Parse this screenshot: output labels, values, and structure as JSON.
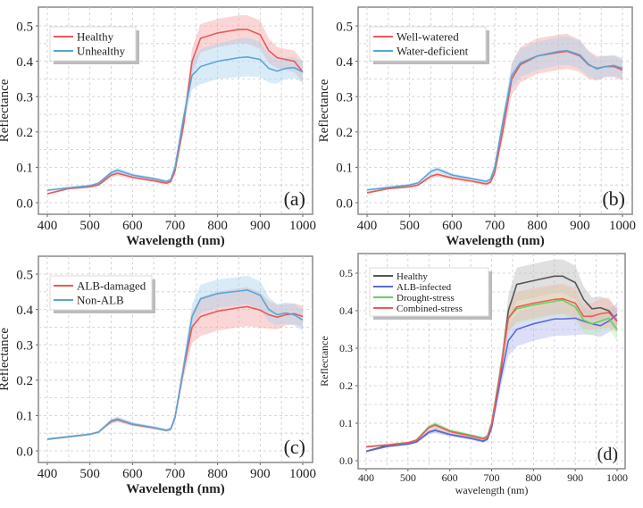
{
  "chart_data": [
    {
      "type": "line",
      "panel_label": "(a)",
      "xlabel": "Wavelength (nm)",
      "ylabel": "Reflectance",
      "xlim": [
        380,
        1020
      ],
      "ylim": [
        -0.015,
        0.55
      ],
      "xticks": [
        400,
        500,
        600,
        700,
        800,
        900,
        1000
      ],
      "yticks": [
        0.0,
        0.1,
        0.2,
        0.3,
        0.4,
        0.5
      ],
      "ytick_labels": [
        "0.0",
        "0.1",
        "0.2",
        "0.3",
        "0.4",
        "0.5"
      ],
      "grid": true,
      "legend_position": "top-left",
      "x": [
        400,
        450,
        500,
        520,
        550,
        565,
        600,
        650,
        680,
        690,
        700,
        720,
        740,
        760,
        800,
        850,
        870,
        900,
        920,
        940,
        960,
        980,
        1000
      ],
      "series": [
        {
          "name": "Healthy",
          "color": "#e8595a",
          "band_color": "#f4a5a5",
          "values": [
            0.025,
            0.04,
            0.045,
            0.05,
            0.078,
            0.083,
            0.072,
            0.062,
            0.055,
            0.06,
            0.09,
            0.22,
            0.4,
            0.465,
            0.48,
            0.49,
            0.49,
            0.475,
            0.43,
            0.41,
            0.405,
            0.4,
            0.37
          ],
          "std": [
            0.003,
            0.003,
            0.003,
            0.003,
            0.006,
            0.007,
            0.005,
            0.004,
            0.004,
            0.005,
            0.01,
            0.02,
            0.035,
            0.04,
            0.04,
            0.04,
            0.04,
            0.04,
            0.035,
            0.03,
            0.03,
            0.03,
            0.03
          ]
        },
        {
          "name": "Unhealthy",
          "color": "#5aa5d6",
          "band_color": "#a9d2ee",
          "values": [
            0.035,
            0.042,
            0.048,
            0.055,
            0.085,
            0.092,
            0.078,
            0.068,
            0.06,
            0.065,
            0.1,
            0.24,
            0.36,
            0.385,
            0.4,
            0.41,
            0.412,
            0.405,
            0.38,
            0.372,
            0.38,
            0.382,
            0.37
          ],
          "std": [
            0.003,
            0.003,
            0.003,
            0.003,
            0.006,
            0.007,
            0.005,
            0.004,
            0.004,
            0.005,
            0.01,
            0.02,
            0.04,
            0.05,
            0.05,
            0.055,
            0.055,
            0.05,
            0.04,
            0.035,
            0.03,
            0.03,
            0.03
          ]
        }
      ]
    },
    {
      "type": "line",
      "panel_label": "(b)",
      "xlabel": "Wavelength (nm)",
      "ylabel": "Reflectance",
      "xlim": [
        380,
        1020
      ],
      "ylim": [
        -0.015,
        0.55
      ],
      "xticks": [
        400,
        500,
        600,
        700,
        800,
        900,
        1000
      ],
      "yticks": [
        0.0,
        0.1,
        0.2,
        0.3,
        0.4,
        0.5
      ],
      "ytick_labels": [
        "0.0",
        "0.1",
        "0.2",
        "0.3",
        "0.4",
        "0.5"
      ],
      "grid": true,
      "legend_position": "top-left",
      "x": [
        400,
        450,
        500,
        520,
        550,
        565,
        600,
        650,
        680,
        690,
        700,
        720,
        740,
        760,
        800,
        850,
        870,
        900,
        920,
        940,
        960,
        980,
        1000
      ],
      "series": [
        {
          "name": "Well-watered",
          "color": "#e8595a",
          "band_color": "#f4a5a5",
          "values": [
            0.028,
            0.04,
            0.045,
            0.05,
            0.075,
            0.08,
            0.07,
            0.06,
            0.053,
            0.058,
            0.085,
            0.21,
            0.35,
            0.39,
            0.415,
            0.425,
            0.428,
            0.415,
            0.39,
            0.38,
            0.385,
            0.385,
            0.375
          ],
          "std": [
            0.003,
            0.003,
            0.003,
            0.003,
            0.006,
            0.007,
            0.005,
            0.004,
            0.004,
            0.005,
            0.01,
            0.025,
            0.045,
            0.05,
            0.05,
            0.05,
            0.05,
            0.045,
            0.04,
            0.035,
            0.03,
            0.03,
            0.03
          ]
        },
        {
          "name": "Water-deficient",
          "color": "#5aa5d6",
          "band_color": "#a9d2ee",
          "values": [
            0.036,
            0.043,
            0.05,
            0.056,
            0.088,
            0.095,
            0.078,
            0.067,
            0.06,
            0.066,
            0.1,
            0.235,
            0.36,
            0.395,
            0.415,
            0.428,
            0.43,
            0.418,
            0.392,
            0.378,
            0.385,
            0.388,
            0.38
          ],
          "std": [
            0.003,
            0.003,
            0.003,
            0.003,
            0.006,
            0.007,
            0.005,
            0.004,
            0.004,
            0.005,
            0.01,
            0.02,
            0.035,
            0.04,
            0.04,
            0.04,
            0.04,
            0.04,
            0.035,
            0.03,
            0.03,
            0.03,
            0.03
          ]
        }
      ]
    },
    {
      "type": "line",
      "panel_label": "(c)",
      "xlabel": "Wavelength (nm)",
      "ylabel": "Reflectance",
      "xlim": [
        380,
        1020
      ],
      "ylim": [
        -0.015,
        0.55
      ],
      "xticks": [
        400,
        500,
        600,
        700,
        800,
        900,
        1000
      ],
      "yticks": [
        0.0,
        0.1,
        0.2,
        0.3,
        0.4,
        0.5
      ],
      "ytick_labels": [
        "0.0",
        "0.1",
        "0.2",
        "0.3",
        "0.4",
        "0.5"
      ],
      "grid": true,
      "legend_position": "top-left",
      "x": [
        400,
        450,
        500,
        520,
        550,
        565,
        600,
        650,
        680,
        690,
        700,
        720,
        740,
        760,
        800,
        850,
        870,
        900,
        920,
        940,
        960,
        980,
        1000
      ],
      "series": [
        {
          "name": "ALB-damaged",
          "color": "#e8595a",
          "band_color": "#f4a5a5",
          "values": [
            0.033,
            0.04,
            0.047,
            0.053,
            0.083,
            0.088,
            0.075,
            0.065,
            0.058,
            0.062,
            0.095,
            0.23,
            0.35,
            0.38,
            0.395,
            0.405,
            0.408,
            0.398,
            0.385,
            0.378,
            0.385,
            0.388,
            0.38
          ],
          "std": [
            0.003,
            0.003,
            0.003,
            0.003,
            0.006,
            0.007,
            0.005,
            0.004,
            0.004,
            0.005,
            0.01,
            0.025,
            0.045,
            0.055,
            0.055,
            0.055,
            0.055,
            0.05,
            0.04,
            0.035,
            0.03,
            0.03,
            0.03
          ]
        },
        {
          "name": "Non-ALB",
          "color": "#5aa5d6",
          "band_color": "#a9d2ee",
          "values": [
            0.033,
            0.04,
            0.047,
            0.053,
            0.085,
            0.09,
            0.076,
            0.066,
            0.058,
            0.062,
            0.095,
            0.235,
            0.38,
            0.43,
            0.445,
            0.452,
            0.455,
            0.44,
            0.4,
            0.385,
            0.39,
            0.385,
            0.37
          ],
          "std": [
            0.003,
            0.003,
            0.003,
            0.003,
            0.006,
            0.007,
            0.005,
            0.004,
            0.004,
            0.005,
            0.01,
            0.02,
            0.035,
            0.04,
            0.04,
            0.04,
            0.04,
            0.04,
            0.035,
            0.03,
            0.03,
            0.03,
            0.03
          ]
        }
      ]
    },
    {
      "type": "line",
      "panel_label": "(d)",
      "xlabel": "wavelength (nm)",
      "ylabel": "Reflectance",
      "xlim": [
        380,
        1020
      ],
      "ylim": [
        -0.02,
        0.55
      ],
      "xticks": [
        400,
        500,
        600,
        700,
        800,
        900,
        1000
      ],
      "yticks": [
        0.0,
        0.1,
        0.2,
        0.3,
        0.4,
        0.5
      ],
      "ytick_labels": [
        "0.0",
        "0.1",
        "0.2",
        "0.3",
        "0.4",
        "0.5"
      ],
      "grid": true,
      "legend_position": "top-left",
      "x": [
        400,
        450,
        500,
        520,
        550,
        565,
        600,
        650,
        680,
        690,
        700,
        720,
        740,
        760,
        800,
        850,
        870,
        900,
        920,
        940,
        960,
        980,
        1000
      ],
      "series": [
        {
          "name": "Healthy",
          "color": "#555555",
          "band_color": "#bbbbbb",
          "values": [
            0.025,
            0.04,
            0.045,
            0.05,
            0.076,
            0.081,
            0.07,
            0.06,
            0.052,
            0.058,
            0.09,
            0.22,
            0.4,
            0.47,
            0.48,
            0.492,
            0.492,
            0.475,
            0.43,
            0.405,
            0.408,
            0.4,
            0.372
          ],
          "std": [
            0.003,
            0.003,
            0.003,
            0.003,
            0.006,
            0.007,
            0.005,
            0.004,
            0.004,
            0.005,
            0.01,
            0.025,
            0.04,
            0.045,
            0.045,
            0.045,
            0.045,
            0.045,
            0.035,
            0.03,
            0.03,
            0.03,
            0.03
          ]
        },
        {
          "name": "ALB-infected",
          "color": "#5a6ad6",
          "band_color": "#b3b8f0",
          "values": [
            0.025,
            0.038,
            0.044,
            0.05,
            0.076,
            0.081,
            0.07,
            0.06,
            0.052,
            0.058,
            0.088,
            0.21,
            0.32,
            0.35,
            0.365,
            0.378,
            0.378,
            0.38,
            0.372,
            0.365,
            0.36,
            0.372,
            0.39
          ],
          "std": [
            0.003,
            0.003,
            0.003,
            0.003,
            0.006,
            0.007,
            0.005,
            0.004,
            0.004,
            0.005,
            0.01,
            0.025,
            0.04,
            0.045,
            0.045,
            0.045,
            0.045,
            0.045,
            0.035,
            0.03,
            0.03,
            0.03,
            0.03
          ]
        },
        {
          "name": "Drought-stress",
          "color": "#5dd65a",
          "band_color": "#b5efb3",
          "values": [
            0.037,
            0.042,
            0.048,
            0.055,
            0.09,
            0.097,
            0.08,
            0.068,
            0.06,
            0.066,
            0.1,
            0.235,
            0.38,
            0.405,
            0.415,
            0.425,
            0.428,
            0.41,
            0.375,
            0.365,
            0.372,
            0.38,
            0.35
          ],
          "std": [
            0.003,
            0.003,
            0.003,
            0.003,
            0.006,
            0.007,
            0.005,
            0.004,
            0.004,
            0.005,
            0.01,
            0.02,
            0.035,
            0.04,
            0.04,
            0.04,
            0.04,
            0.04,
            0.035,
            0.03,
            0.03,
            0.03,
            0.03
          ]
        },
        {
          "name": "Combined-stress",
          "color": "#ef5a5a",
          "band_color": "#f4b5b0",
          "values": [
            0.037,
            0.042,
            0.048,
            0.054,
            0.088,
            0.095,
            0.078,
            0.066,
            0.058,
            0.064,
            0.098,
            0.23,
            0.38,
            0.41,
            0.42,
            0.43,
            0.432,
            0.42,
            0.385,
            0.385,
            0.392,
            0.395,
            0.372
          ],
          "std": [
            0.003,
            0.003,
            0.003,
            0.003,
            0.006,
            0.007,
            0.005,
            0.004,
            0.004,
            0.005,
            0.01,
            0.02,
            0.035,
            0.04,
            0.04,
            0.04,
            0.04,
            0.04,
            0.035,
            0.035,
            0.04,
            0.04,
            0.03
          ]
        }
      ]
    }
  ]
}
